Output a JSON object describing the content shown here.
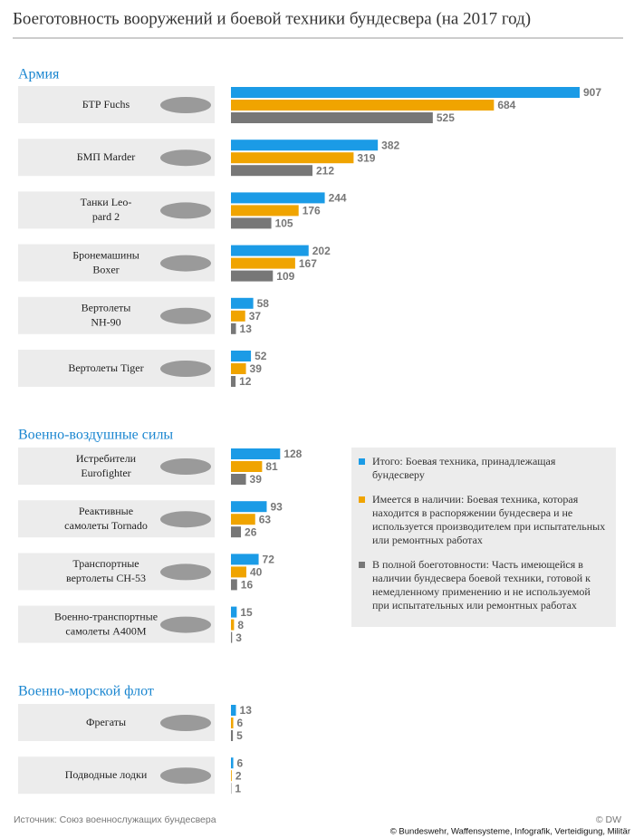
{
  "chart_data": {
    "type": "grouped-hbar",
    "title": "Боеготовность вооружений и боевой техники бундесвера (на 2017 год)",
    "series": [
      {
        "name": "Итого: Боевая техника, принадлежащая бундесверу",
        "color": "#1b9be6"
      },
      {
        "name": "Имеется в наличии: Боевая техника, которая находится в распоряжении бундесвера и не используется производителем при испытательных или ремонтных работах",
        "color": "#f0a400"
      },
      {
        "name": "В полной боеготовности: Часть имеющейся в наличии бундесвера боевой техники, готовой к немедленному применению и не используемой при испытательных или ремонтных работах",
        "color": "#777777"
      }
    ],
    "groups": [
      {
        "name": "Армия",
        "categories": [
          [
            "БТР Fuchs"
          ],
          [
            "БМП Marder"
          ],
          [
            "Танки Leo-",
            "pard 2"
          ],
          [
            "Бронемашины",
            "Boxer"
          ],
          [
            "Вертолеты",
            "NH-90"
          ],
          [
            "Вертолеты Tiger"
          ]
        ],
        "values": [
          [
            907,
            684,
            525
          ],
          [
            382,
            319,
            212
          ],
          [
            244,
            176,
            105
          ],
          [
            202,
            167,
            109
          ],
          [
            58,
            37,
            13
          ],
          [
            52,
            39,
            12
          ]
        ]
      },
      {
        "name": "Военно-воздушные силы",
        "categories": [
          [
            "Истребители",
            "Eurofighter"
          ],
          [
            "Реактивные",
            "самолеты Tornado"
          ],
          [
            "Транспортные",
            "вертолеты CH-53"
          ],
          [
            "Военно-транспортные",
            "самолеты A400M"
          ]
        ],
        "values": [
          [
            128,
            81,
            39
          ],
          [
            93,
            63,
            26
          ],
          [
            72,
            40,
            16
          ],
          [
            15,
            8,
            3
          ]
        ]
      },
      {
        "name": "Военно-морской флот",
        "categories": [
          [
            "Фрегаты"
          ],
          [
            "Подводные лодки"
          ]
        ],
        "values": [
          [
            13,
            6,
            5
          ],
          [
            6,
            2,
            1
          ]
        ]
      }
    ],
    "source": "Источник: Союз военнослужащих бундесвера",
    "brand": "© DW",
    "copyright": "© Bundeswehr, Waffensysteme, Infografik, Verteidigung, Militär"
  }
}
